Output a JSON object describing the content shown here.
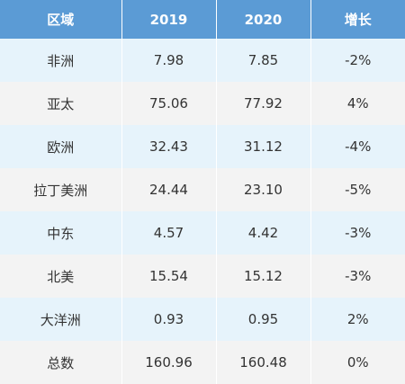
{
  "table": {
    "headers": {
      "region": "区域",
      "y2019": "2019",
      "y2020": "2020",
      "growth": "增长"
    },
    "rows": [
      {
        "region": "非洲",
        "y2019": "7.98",
        "y2020": "7.85",
        "growth": "-2%"
      },
      {
        "region": "亚太",
        "y2019": "75.06",
        "y2020": "77.92",
        "growth": "4%"
      },
      {
        "region": "欧洲",
        "y2019": "32.43",
        "y2020": "31.12",
        "growth": "-4%"
      },
      {
        "region": "拉丁美洲",
        "y2019": "24.44",
        "y2020": "23.10",
        "growth": "-5%"
      },
      {
        "region": "中东",
        "y2019": "4.57",
        "y2020": "4.42",
        "growth": "-3%"
      },
      {
        "region": "北美",
        "y2019": "15.54",
        "y2020": "15.12",
        "growth": "-3%"
      },
      {
        "region": "大洋洲",
        "y2019": "0.93",
        "y2020": "0.95",
        "growth": "2%"
      },
      {
        "region": "总数",
        "y2019": "160.96",
        "y2020": "160.48",
        "growth": "0%"
      }
    ]
  },
  "colors": {
    "header_bg": "#5b9bd5",
    "row_odd_bg": "#e6f3fb",
    "row_even_bg": "#f3f3f3"
  }
}
